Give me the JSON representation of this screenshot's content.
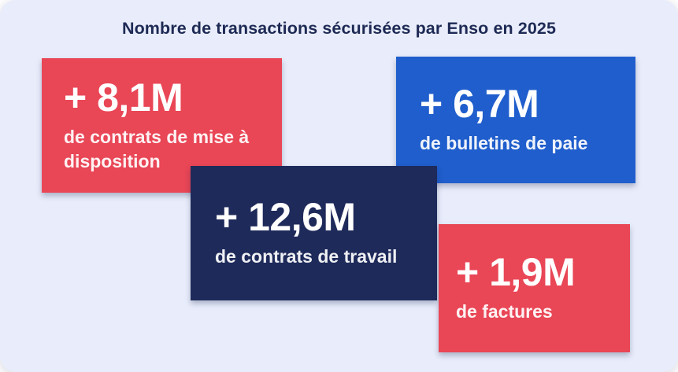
{
  "title": "Nombre de transactions sécurisées par Enso en 2025",
  "colors": {
    "page_background": "#ffffff",
    "panel_background": "#e9edfb",
    "title_text": "#1e2a55",
    "card_red": "#e94656",
    "card_blue": "#1f5ecc",
    "card_navy": "#1e2a5a",
    "card_text": "#ffffff"
  },
  "cards": [
    {
      "id": "contrats-mise-a-disposition",
      "value": "+ 8,1M",
      "label": "de contrats de mise à disposition",
      "color": "#e94656"
    },
    {
      "id": "bulletins-de-paie",
      "value": "+ 6,7M",
      "label": "de bulletins de paie",
      "color": "#1f5ecc"
    },
    {
      "id": "contrats-de-travail",
      "value": "+ 12,6M",
      "label": "de contrats de travail",
      "color": "#1e2a5a"
    },
    {
      "id": "factures",
      "value": "+ 1,9M",
      "label": "de factures",
      "color": "#e94656"
    }
  ],
  "chart_data": {
    "type": "table",
    "title": "Nombre de transactions sécurisées par Enso en 2025",
    "categories": [
      "contrats de mise à disposition",
      "bulletins de paie",
      "contrats de travail",
      "factures"
    ],
    "values_millions": [
      8.1,
      6.7,
      12.6,
      1.9
    ],
    "value_labels": [
      "+ 8,1M",
      "+ 6,7M",
      "+ 12,6M",
      "+ 1,9M"
    ],
    "unit": "millions de transactions"
  }
}
